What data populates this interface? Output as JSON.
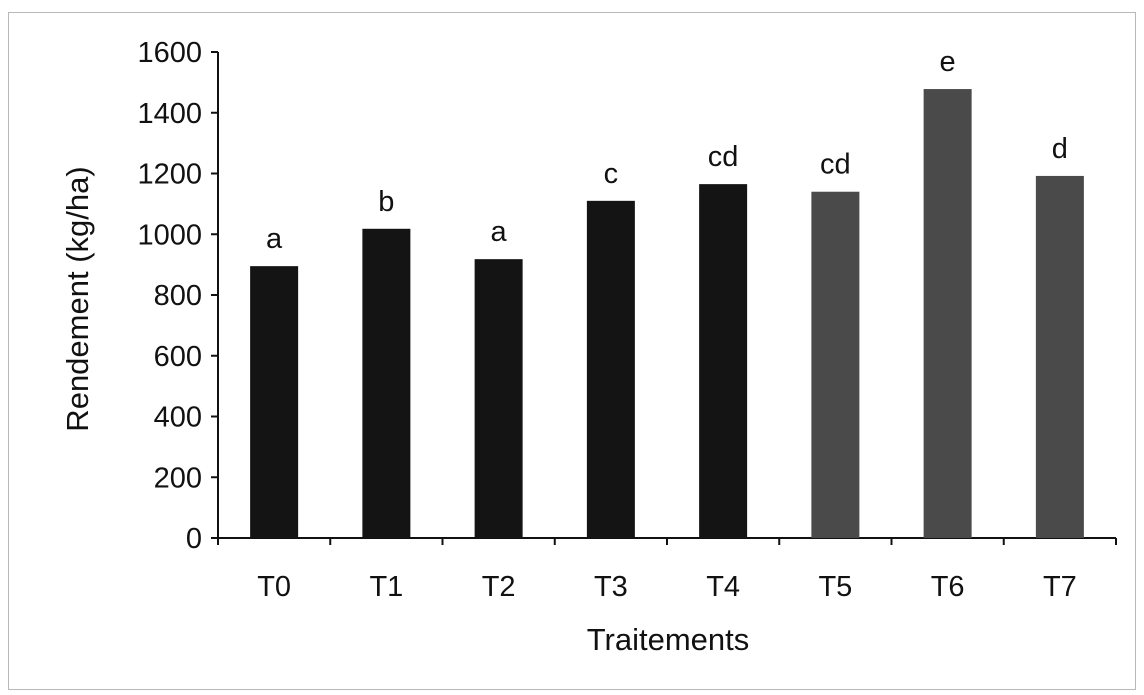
{
  "chart_data": {
    "type": "bar",
    "categories": [
      "T0",
      "T1",
      "T2",
      "T3",
      "T4",
      "T5",
      "T6",
      "T7"
    ],
    "values": [
      895,
      1018,
      918,
      1110,
      1165,
      1140,
      1478,
      1192
    ],
    "data_labels": [
      "a",
      "b",
      "a",
      "c",
      "cd",
      "cd",
      "e",
      "d"
    ],
    "bar_colors": [
      "#141414",
      "#141414",
      "#141414",
      "#141414",
      "#141414",
      "#4a4a4a",
      "#4a4a4a",
      "#4a4a4a"
    ],
    "yticks": [
      "0",
      "200",
      "400",
      "600",
      "800",
      "1000",
      "1200",
      "1400",
      "1600"
    ],
    "xlabel": "Traitements",
    "ylabel": "Rendement (kg/ha)",
    "ylim": [
      0,
      1600
    ],
    "grid": false,
    "legend": "none"
  }
}
